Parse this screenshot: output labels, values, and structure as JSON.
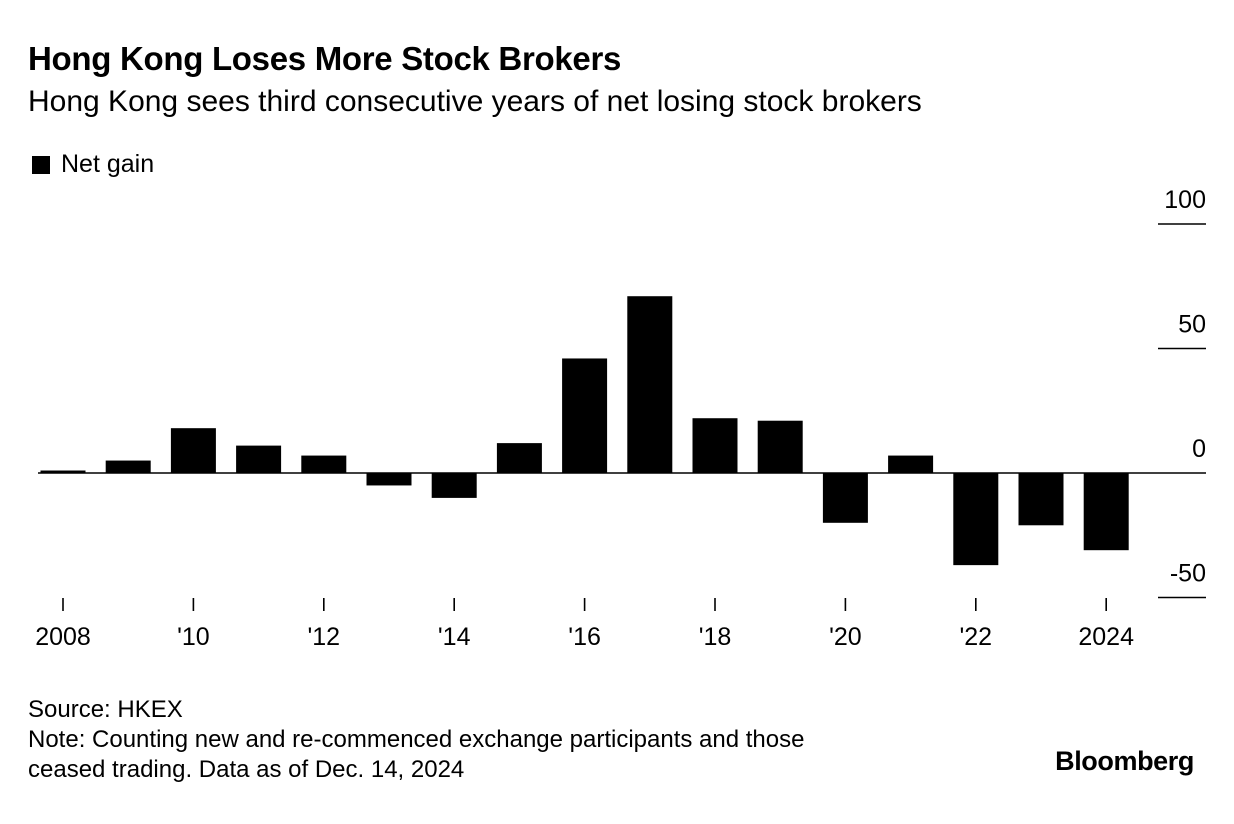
{
  "colors": {
    "bar": "#000000",
    "axis": "#000000",
    "background": "#ffffff"
  },
  "header": {
    "title": "Hong Kong Loses More Stock Brokers",
    "subtitle": "Hong Kong sees third consecutive years of net losing stock brokers"
  },
  "legend": {
    "label": "Net gain"
  },
  "chart_data": {
    "type": "bar",
    "title": "Hong Kong Loses More Stock Brokers",
    "subtitle": "Hong Kong sees third consecutive years of net losing stock brokers",
    "xlabel": "",
    "ylabel": "",
    "categories": [
      "2008",
      "2009",
      "2010",
      "2011",
      "2012",
      "2013",
      "2014",
      "2015",
      "2016",
      "2017",
      "2018",
      "2019",
      "2020",
      "2021",
      "2022",
      "2023",
      "2024"
    ],
    "series": [
      {
        "name": "Net gain",
        "values": [
          1,
          5,
          18,
          11,
          7,
          -5,
          -10,
          12,
          46,
          71,
          22,
          21,
          -20,
          7,
          -37,
          -21,
          -31
        ]
      }
    ],
    "ylim": [
      -50,
      100
    ],
    "yticks": [
      -50,
      0,
      50,
      100
    ],
    "ytick_labels": [
      "-50",
      "0",
      "50",
      "100"
    ],
    "xtick_labels": [
      {
        "category": "2008",
        "label": "2008"
      },
      {
        "category": "2010",
        "label": "'10"
      },
      {
        "category": "2012",
        "label": "'12"
      },
      {
        "category": "2014",
        "label": "'14"
      },
      {
        "category": "2016",
        "label": "'16"
      },
      {
        "category": "2018",
        "label": "'18"
      },
      {
        "category": "2020",
        "label": "'20"
      },
      {
        "category": "2022",
        "label": "'22"
      },
      {
        "category": "2024",
        "label": "2024"
      }
    ],
    "y_axis_position": "right",
    "legend_position": "top-left",
    "grid": false
  },
  "footer": {
    "source": "Source: HKEX",
    "note_line1": "Note: Counting new and re-commenced exchange participants and those",
    "note_line2": "ceased trading. Data as of Dec. 14, 2024"
  },
  "brand": {
    "name": "Bloomberg"
  }
}
